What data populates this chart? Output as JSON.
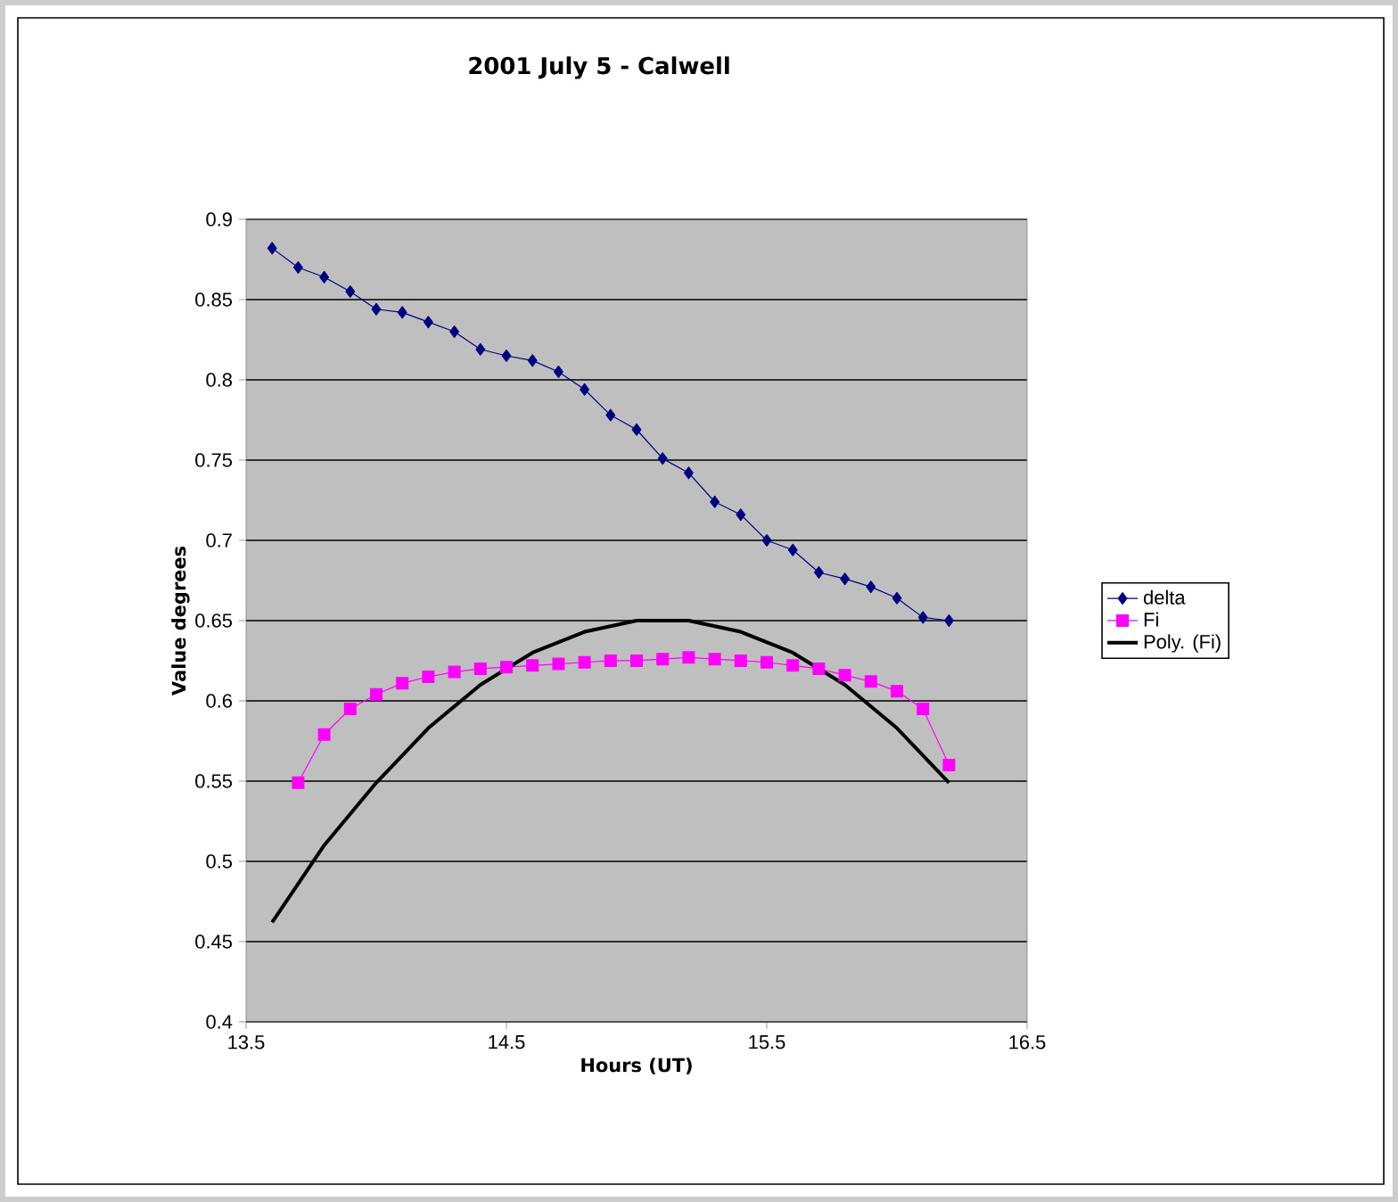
{
  "chart_data": {
    "type": "line",
    "title": "2001 July 5 - Calwell",
    "xlabel": "Hours (UT)",
    "ylabel": "Value degrees",
    "x": [
      13.6,
      13.7,
      13.8,
      13.9,
      14.0,
      14.1,
      14.2,
      14.3,
      14.4,
      14.5,
      14.6,
      14.7,
      14.8,
      14.9,
      15.0,
      15.1,
      15.2,
      15.3,
      15.4,
      15.5,
      15.6,
      15.7,
      15.8,
      15.9,
      16.0,
      16.1,
      16.2
    ],
    "series": [
      {
        "name": "delta",
        "color": "#000080",
        "marker": "diamond",
        "values": [
          0.882,
          0.87,
          0.864,
          0.855,
          0.844,
          0.842,
          0.836,
          0.83,
          0.819,
          0.815,
          0.812,
          0.805,
          0.794,
          0.778,
          0.769,
          0.751,
          0.742,
          0.724,
          0.716,
          0.7,
          0.694,
          0.68,
          0.676,
          0.671,
          0.664,
          0.652,
          0.65
        ]
      },
      {
        "name": "Fi",
        "color": "#ff00ff",
        "marker": "square",
        "x": [
          13.7,
          13.8,
          13.9,
          14.0,
          14.1,
          14.2,
          14.3,
          14.4,
          14.5,
          14.6,
          14.7,
          14.8,
          14.9,
          15.0,
          15.1,
          15.2,
          15.3,
          15.4,
          15.5,
          15.6,
          15.7,
          15.8,
          15.9,
          16.0,
          16.1,
          16.2
        ],
        "values": [
          0.549,
          0.579,
          0.595,
          0.604,
          0.611,
          0.615,
          0.618,
          0.62,
          0.621,
          0.622,
          0.623,
          0.624,
          0.625,
          0.625,
          0.626,
          0.627,
          0.626,
          0.625,
          0.624,
          0.622,
          0.62,
          0.616,
          0.612,
          0.606,
          0.595,
          0.56
        ]
      },
      {
        "name": "Poly. (Fi)",
        "color": "#000000",
        "marker": "none",
        "x": [
          13.6,
          13.8,
          14.0,
          14.2,
          14.4,
          14.6,
          14.8,
          15.0,
          15.2,
          15.4,
          15.6,
          15.8,
          16.0,
          16.2
        ],
        "values": [
          0.462,
          0.51,
          0.549,
          0.583,
          0.61,
          0.63,
          0.643,
          0.65,
          0.65,
          0.643,
          0.63,
          0.61,
          0.583,
          0.549
        ]
      }
    ],
    "xlim": [
      13.5,
      16.5
    ],
    "ylim": [
      0.4,
      0.9
    ],
    "xticks": [
      13.5,
      14.5,
      15.5,
      16.5
    ],
    "yticks": [
      0.4,
      0.45,
      0.5,
      0.55,
      0.6,
      0.65,
      0.7,
      0.75,
      0.8,
      0.85,
      0.9
    ],
    "grid": "y",
    "legend": "right",
    "line_style": "solid"
  }
}
